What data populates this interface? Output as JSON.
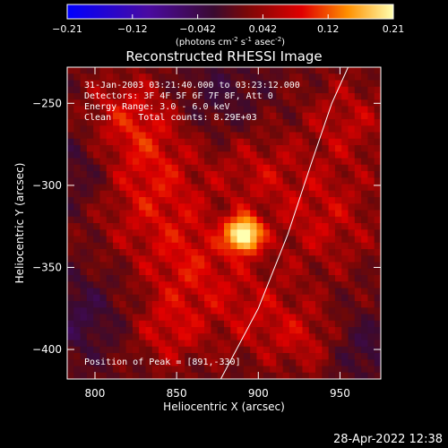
{
  "chart_data": {
    "type": "heatmap",
    "title": "Reconstructed RHESSI Image",
    "xlabel": "Heliocentric X (arcsec)",
    "ylabel": "Heliocentric Y (arcsec)",
    "xlim": [
      783,
      975
    ],
    "ylim": [
      -418,
      -228
    ],
    "xticks": [
      800,
      850,
      900,
      950
    ],
    "yticks": [
      -250,
      -300,
      -350,
      -400
    ],
    "colorbar": {
      "min": -0.21,
      "max": 0.21,
      "ticks": [
        "-0.21",
        "-0.12",
        "-0.042",
        "0.042",
        "0.12",
        "0.21"
      ],
      "label_main": "(photons cm",
      "label_sup1": "-2",
      "label_mid": " s",
      "label_sup2": "-1",
      "label_end": " asec",
      "label_sup3": "-2",
      "label_close": ")"
    },
    "annotations": [
      "31-Jan-2003 03:21:40.000 to 03:23:12.000",
      "Detectors: 3F 4F 5F 6F 7F 8F, Att 0",
      "Energy Range: 3.0 - 6.0 keV",
      "Clean     Total counts: 8.29E+03"
    ],
    "peak_label": "Position of Peak = [891,-330]",
    "peak": [
      891,
      -330
    ],
    "limb_curve": [
      [
        877,
        -418
      ],
      [
        900,
        -375
      ],
      [
        918,
        -330
      ],
      [
        933,
        -285
      ],
      [
        945,
        -250
      ],
      [
        955,
        -228
      ]
    ],
    "blobs": [
      {
        "x": 891,
        "y": -330,
        "amp": 0.21,
        "r": 7
      },
      {
        "x": 830,
        "y": -300,
        "amp": 0.06,
        "r": 28
      },
      {
        "x": 820,
        "y": -260,
        "amp": 0.05,
        "r": 20
      },
      {
        "x": 860,
        "y": -350,
        "amp": 0.05,
        "r": 22
      },
      {
        "x": 845,
        "y": -390,
        "amp": 0.045,
        "r": 16
      },
      {
        "x": 900,
        "y": -290,
        "amp": 0.035,
        "r": 18
      },
      {
        "x": 900,
        "y": -380,
        "amp": 0.04,
        "r": 20
      },
      {
        "x": 940,
        "y": -320,
        "amp": 0.045,
        "r": 25
      },
      {
        "x": 955,
        "y": -260,
        "amp": 0.04,
        "r": 20
      },
      {
        "x": 930,
        "y": -395,
        "amp": 0.035,
        "r": 15
      },
      {
        "x": 790,
        "y": -380,
        "amp": -0.04,
        "r": 18
      },
      {
        "x": 795,
        "y": -290,
        "amp": -0.045,
        "r": 20
      },
      {
        "x": 875,
        "y": -245,
        "amp": -0.03,
        "r": 18
      },
      {
        "x": 965,
        "y": -400,
        "amp": -0.035,
        "r": 14
      }
    ]
  },
  "footer": {
    "timestamp": "28-Apr-2022 12:38"
  }
}
